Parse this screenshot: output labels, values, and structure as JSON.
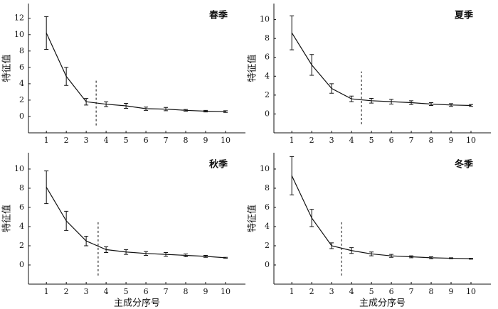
{
  "chart_data": [
    {
      "type": "line",
      "title": "春季",
      "ylabel": "特征值",
      "x": [
        1,
        2,
        3,
        4,
        5,
        6,
        7,
        8,
        9,
        10
      ],
      "values": [
        10.2,
        4.9,
        1.8,
        1.5,
        1.3,
        0.95,
        0.9,
        0.75,
        0.65,
        0.6
      ],
      "errors": [
        2.0,
        1.1,
        0.4,
        0.3,
        0.3,
        0.2,
        0.2,
        0.1,
        0.1,
        0.1
      ],
      "vline": 3.5,
      "color": "#111111",
      "xlim": [
        0.1,
        11
      ],
      "ylim": [
        -2,
        13.8
      ],
      "xticks": [
        1,
        2,
        3,
        4,
        5,
        6,
        7,
        8,
        9,
        10
      ],
      "yticks": [
        0,
        2,
        4,
        6,
        8,
        10,
        12
      ]
    },
    {
      "type": "line",
      "title": "夏季",
      "ylabel": "特征值",
      "x": [
        1,
        2,
        3,
        4,
        5,
        6,
        7,
        8,
        9,
        10
      ],
      "values": [
        8.6,
        5.2,
        2.7,
        1.6,
        1.4,
        1.3,
        1.2,
        1.05,
        0.95,
        0.9
      ],
      "errors": [
        1.8,
        1.1,
        0.5,
        0.3,
        0.25,
        0.25,
        0.2,
        0.15,
        0.15,
        0.1
      ],
      "vline": 4.5,
      "color": "#111111",
      "xlim": [
        0.1,
        11
      ],
      "ylim": [
        -2,
        11.7
      ],
      "xticks": [
        1,
        2,
        3,
        4,
        5,
        6,
        7,
        8,
        9,
        10
      ],
      "yticks": [
        0,
        2,
        4,
        6,
        8,
        10
      ]
    },
    {
      "type": "line",
      "title": "秋季",
      "ylabel": "特征值",
      "xlabel": "主成分序号",
      "x": [
        1,
        2,
        3,
        4,
        5,
        6,
        7,
        8,
        9,
        10
      ],
      "values": [
        8.1,
        4.6,
        2.5,
        1.6,
        1.35,
        1.2,
        1.1,
        1.0,
        0.9,
        0.75
      ],
      "errors": [
        1.7,
        1.0,
        0.5,
        0.3,
        0.25,
        0.2,
        0.2,
        0.15,
        0.1,
        0.05
      ],
      "vline": 3.6,
      "color": "#111111",
      "xlim": [
        0.1,
        11
      ],
      "ylim": [
        -2,
        11.7
      ],
      "xticks": [
        1,
        2,
        3,
        4,
        5,
        6,
        7,
        8,
        9,
        10
      ],
      "yticks": [
        0,
        2,
        4,
        6,
        8,
        10
      ]
    },
    {
      "type": "line",
      "title": "冬季",
      "ylabel": "特征值",
      "xlabel": "主成分序号",
      "x": [
        1,
        2,
        3,
        4,
        5,
        6,
        7,
        8,
        9,
        10
      ],
      "values": [
        9.3,
        4.9,
        2.0,
        1.5,
        1.15,
        0.95,
        0.85,
        0.75,
        0.7,
        0.65
      ],
      "errors": [
        2.0,
        0.9,
        0.3,
        0.3,
        0.2,
        0.15,
        0.1,
        0.1,
        0.05,
        0.05
      ],
      "vline": 3.5,
      "color": "#111111",
      "xlim": [
        0.1,
        11
      ],
      "ylim": [
        -2,
        11.7
      ],
      "xticks": [
        1,
        2,
        3,
        4,
        5,
        6,
        7,
        8,
        9,
        10
      ],
      "yticks": [
        0,
        2,
        4,
        6,
        8,
        10
      ]
    }
  ]
}
